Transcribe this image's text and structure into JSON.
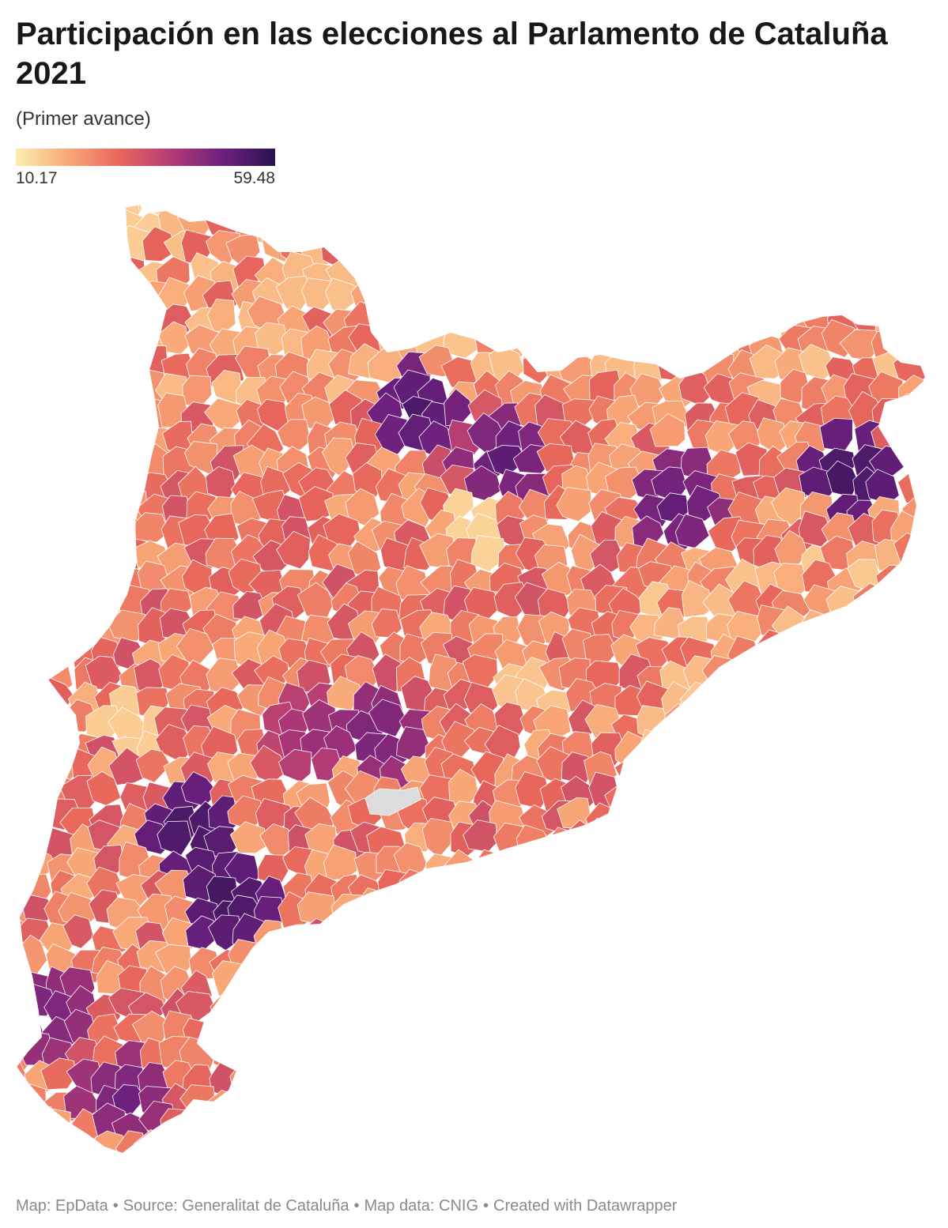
{
  "header": {
    "title": "Participación en las elecciones al Parlamento de Cataluña 2021",
    "subtitle": "(Primer avance)"
  },
  "legend": {
    "min_label": "10.17",
    "max_label": "59.48",
    "min": 10.17,
    "max": 59.48,
    "colors": [
      "#fcefb0",
      "#f9a877",
      "#e8665b",
      "#b23a75",
      "#6c207e",
      "#2b1250"
    ]
  },
  "map": {
    "region": "Cataluña",
    "no_data_color": "#dcdcdc",
    "border_color": "#ffffff"
  },
  "footer": {
    "map_credit": "Map: EpData",
    "source": "Source: Generalitat de Cataluña",
    "map_data": "Map data: CNIG",
    "created_with": "Created with Datawrapper",
    "separator": "•"
  }
}
